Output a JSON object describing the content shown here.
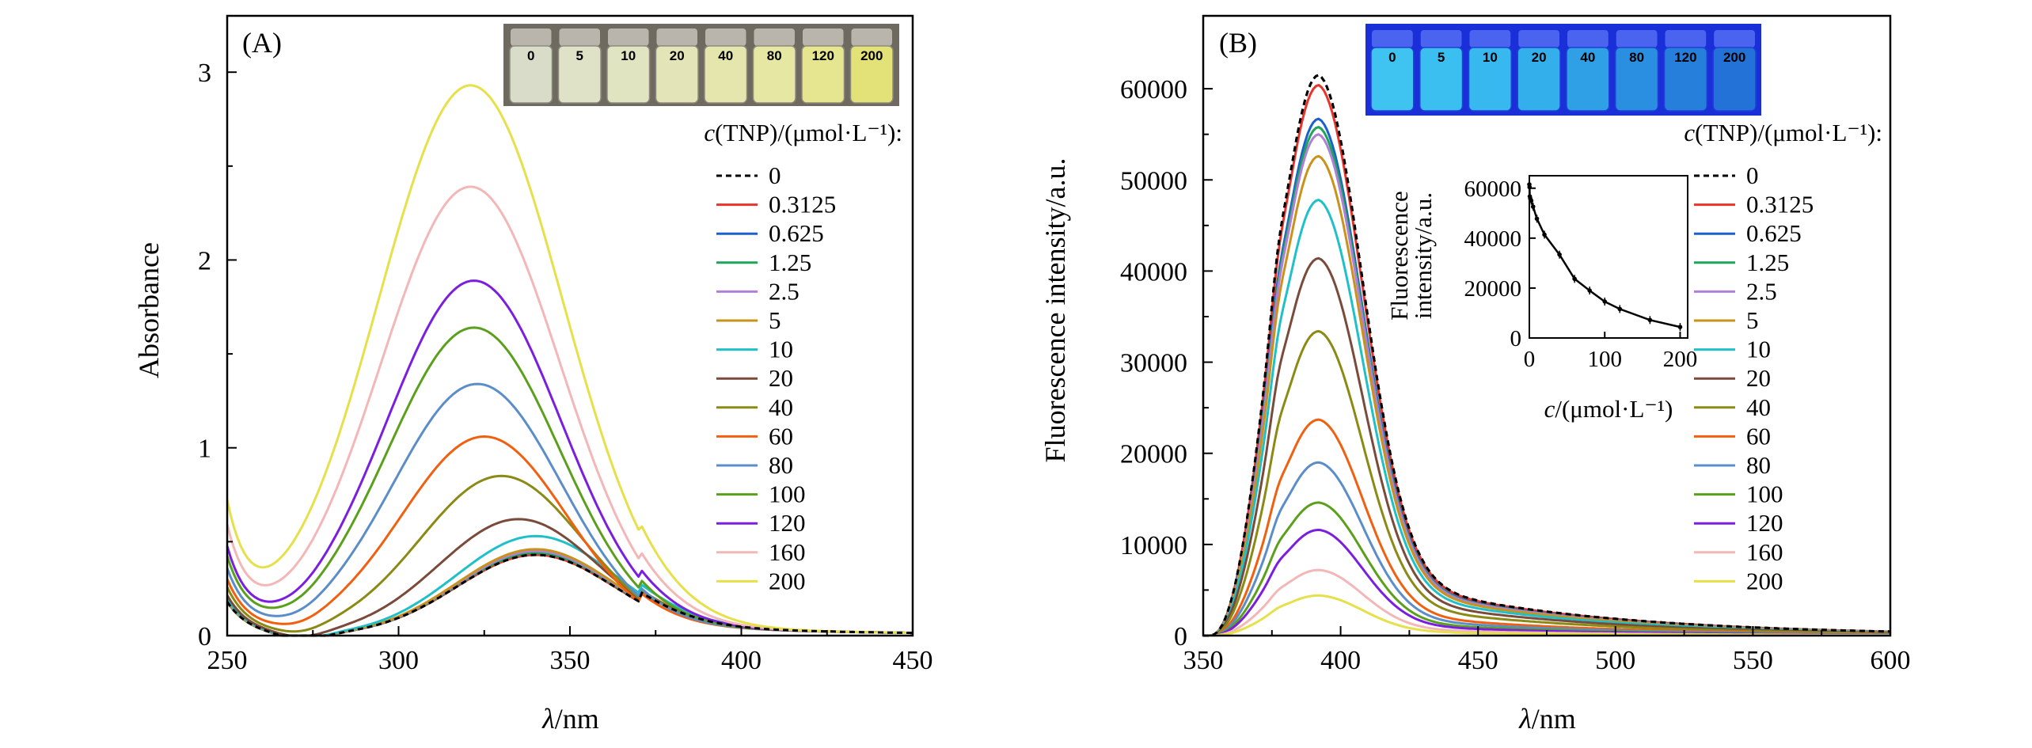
{
  "chart_data": [
    {
      "panel": "(A)",
      "type": "line",
      "xlabel_italic": "λ",
      "xlabel_unit": "/nm",
      "ylabel": "Absorbance",
      "xlim": [
        250,
        450
      ],
      "ylim": [
        0,
        3.3
      ],
      "xticks": [
        250,
        300,
        350,
        400,
        450
      ],
      "yticks": [
        0,
        1,
        2,
        3
      ],
      "legend_title_italic": "c",
      "legend_title_rest": "(TNP)/(μmol·L⁻¹):",
      "vial_labels": [
        "0",
        "5",
        "10",
        "20",
        "40",
        "80",
        "120",
        "200"
      ],
      "series": [
        {
          "name": "0",
          "color": "#000000",
          "dashed": true,
          "peak_x": 340,
          "peak_y": 0.43
        },
        {
          "name": "0.3125",
          "color": "#e8342b",
          "peak_x": 340,
          "peak_y": 0.43
        },
        {
          "name": "0.625",
          "color": "#1c5fcf",
          "peak_x": 340,
          "peak_y": 0.44
        },
        {
          "name": "1.25",
          "color": "#1fa45a",
          "peak_x": 340,
          "peak_y": 0.44
        },
        {
          "name": "2.5",
          "color": "#b07fd6",
          "peak_x": 340,
          "peak_y": 0.45
        },
        {
          "name": "5",
          "color": "#c9921a",
          "peak_x": 340,
          "peak_y": 0.46
        },
        {
          "name": "10",
          "color": "#1fc0c8",
          "peak_x": 340,
          "peak_y": 0.53
        },
        {
          "name": "20",
          "color": "#7a4a3a",
          "peak_x": 335,
          "peak_y": 0.62
        },
        {
          "name": "40",
          "color": "#8a8a14",
          "peak_x": 330,
          "peak_y": 0.85
        },
        {
          "name": "60",
          "color": "#f06010",
          "peak_x": 325,
          "peak_y": 1.06
        },
        {
          "name": "80",
          "color": "#5b8dc9",
          "peak_x": 323,
          "peak_y": 1.34
        },
        {
          "name": "100",
          "color": "#5aa01c",
          "peak_x": 322,
          "peak_y": 1.64
        },
        {
          "name": "120",
          "color": "#7a1ee0",
          "peak_x": 322,
          "peak_y": 1.89
        },
        {
          "name": "160",
          "color": "#f4b7b7",
          "peak_x": 321,
          "peak_y": 2.39
        },
        {
          "name": "200",
          "color": "#e6e04a",
          "peak_x": 321,
          "peak_y": 2.93
        }
      ]
    },
    {
      "panel": "(B)",
      "type": "line",
      "xlabel_italic": "λ",
      "xlabel_unit": "/nm",
      "ylabel": "Fluorescence intensity/a.u.",
      "xlim": [
        350,
        600
      ],
      "ylim": [
        0,
        68000
      ],
      "xticks": [
        350,
        400,
        450,
        500,
        550,
        600
      ],
      "yticks": [
        0,
        10000,
        20000,
        30000,
        40000,
        50000,
        60000
      ],
      "legend_title_italic": "c",
      "legend_title_rest": "(TNP)/(μmol·L⁻¹):",
      "vial_labels": [
        "0",
        "5",
        "10",
        "20",
        "40",
        "80",
        "120",
        "200"
      ],
      "series": [
        {
          "name": "0",
          "color": "#000000",
          "dashed": true,
          "peak_x": 392,
          "peak_y": 61500
        },
        {
          "name": "0.3125",
          "color": "#e8342b",
          "peak_x": 392,
          "peak_y": 60400
        },
        {
          "name": "0.625",
          "color": "#1c5fcf",
          "peak_x": 392,
          "peak_y": 56700
        },
        {
          "name": "1.25",
          "color": "#1fa45a",
          "peak_x": 392,
          "peak_y": 55800
        },
        {
          "name": "2.5",
          "color": "#b07fd6",
          "peak_x": 392,
          "peak_y": 55000
        },
        {
          "name": "5",
          "color": "#c9921a",
          "peak_x": 392,
          "peak_y": 52600
        },
        {
          "name": "10",
          "color": "#1fc0c8",
          "peak_x": 392,
          "peak_y": 47800
        },
        {
          "name": "20",
          "color": "#7a4a3a",
          "peak_x": 392,
          "peak_y": 41400
        },
        {
          "name": "40",
          "color": "#8a8a14",
          "peak_x": 392,
          "peak_y": 33400
        },
        {
          "name": "60",
          "color": "#f06010",
          "peak_x": 392,
          "peak_y": 23700
        },
        {
          "name": "80",
          "color": "#5b8dc9",
          "peak_x": 392,
          "peak_y": 19000
        },
        {
          "name": "100",
          "color": "#5aa01c",
          "peak_x": 392,
          "peak_y": 14600
        },
        {
          "name": "120",
          "color": "#7a1ee0",
          "peak_x": 392,
          "peak_y": 11600
        },
        {
          "name": "160",
          "color": "#f4b7b7",
          "peak_x": 392,
          "peak_y": 7200
        },
        {
          "name": "200",
          "color": "#e6e04a",
          "peak_x": 392,
          "peak_y": 4400
        }
      ],
      "inset": {
        "type": "scatter-line",
        "ylabel_line1": "Fluorescence",
        "ylabel_line2": "intensity/a.u.",
        "xlabel_italic": "c",
        "xlabel_rest": "/(μmol·L⁻¹)",
        "xlim": [
          0,
          210
        ],
        "ylim": [
          0,
          65000
        ],
        "xticks": [
          0,
          100,
          200
        ],
        "yticks": [
          0,
          20000,
          40000,
          60000
        ],
        "points": [
          {
            "x": 0,
            "y": 61500
          },
          {
            "x": 0.3125,
            "y": 60400
          },
          {
            "x": 0.625,
            "y": 56700
          },
          {
            "x": 1.25,
            "y": 55800
          },
          {
            "x": 2.5,
            "y": 55000
          },
          {
            "x": 5,
            "y": 52600
          },
          {
            "x": 10,
            "y": 47800
          },
          {
            "x": 20,
            "y": 41400
          },
          {
            "x": 40,
            "y": 33400
          },
          {
            "x": 60,
            "y": 23700
          },
          {
            "x": 80,
            "y": 19000
          },
          {
            "x": 100,
            "y": 14600
          },
          {
            "x": 120,
            "y": 11600
          },
          {
            "x": 160,
            "y": 7200
          },
          {
            "x": 200,
            "y": 4400
          }
        ]
      }
    }
  ]
}
